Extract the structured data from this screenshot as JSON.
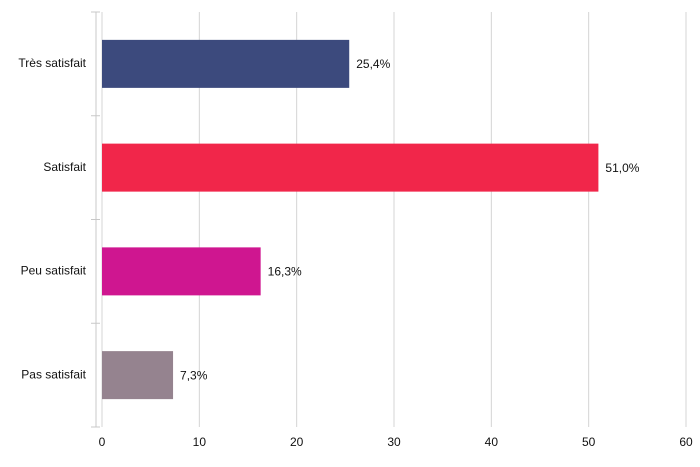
{
  "chart_data": {
    "type": "hbar",
    "categories": [
      "Très satisfait",
      "Satisfait",
      "Peu satisfait",
      "Pas satisfait"
    ],
    "values": [
      25.4,
      51.0,
      16.3,
      7.3
    ],
    "value_labels": [
      "25,4%",
      "51,0%",
      "16,3%",
      "7,3%"
    ],
    "colors": [
      "#3c4a7d",
      "#f1264a",
      "#cf1690",
      "#95838f"
    ],
    "xlim": [
      0,
      60
    ],
    "xticks": [
      0,
      10,
      20,
      30,
      40,
      50,
      60
    ],
    "grid": true
  }
}
